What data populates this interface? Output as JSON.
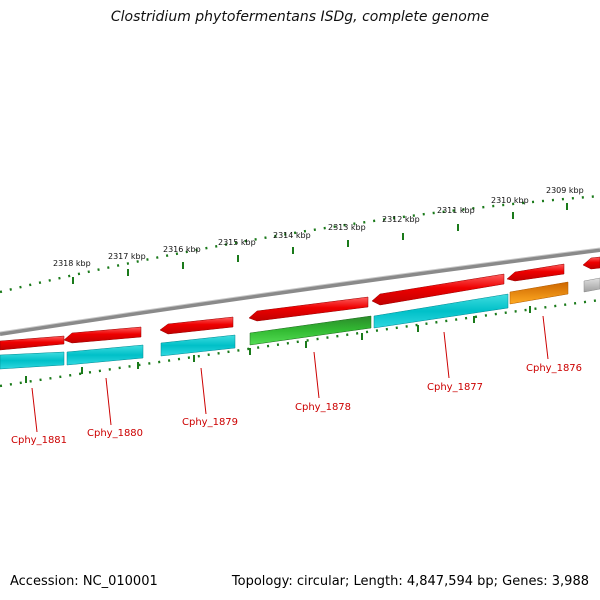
{
  "title": "Clostridium phytofermentans ISDg, complete genome",
  "footer": {
    "accession": "Accession: NC_010001",
    "summary": "Topology: circular; Length: 4,847,594 bp; Genes: 3,988"
  },
  "scale_ticks": [
    {
      "label": "2318 kbp"
    },
    {
      "label": "2317 kbp"
    },
    {
      "label": "2316 kbp"
    },
    {
      "label": "2315 kbp"
    },
    {
      "label": "2314 kbp"
    },
    {
      "label": "2313 kbp"
    },
    {
      "label": "2312 kbp"
    },
    {
      "label": "2311 kbp"
    },
    {
      "label": "2310 kbp"
    },
    {
      "label": "2309 kbp"
    }
  ],
  "gene_labels": [
    {
      "label": "Cphy_1881"
    },
    {
      "label": "Cphy_1880"
    },
    {
      "label": "Cphy_1879"
    },
    {
      "label": "Cphy_1878"
    },
    {
      "label": "Cphy_1877"
    },
    {
      "label": "Cphy_1876"
    }
  ],
  "colors": {
    "gene_red": "#ee0000",
    "cds_cyan": "#00c8d0",
    "rna_green": "#33cc33",
    "orange": "#ff9900",
    "grey": "#bbbbbb",
    "backbone": "#888888",
    "tick_green": "#1a7a1a"
  }
}
